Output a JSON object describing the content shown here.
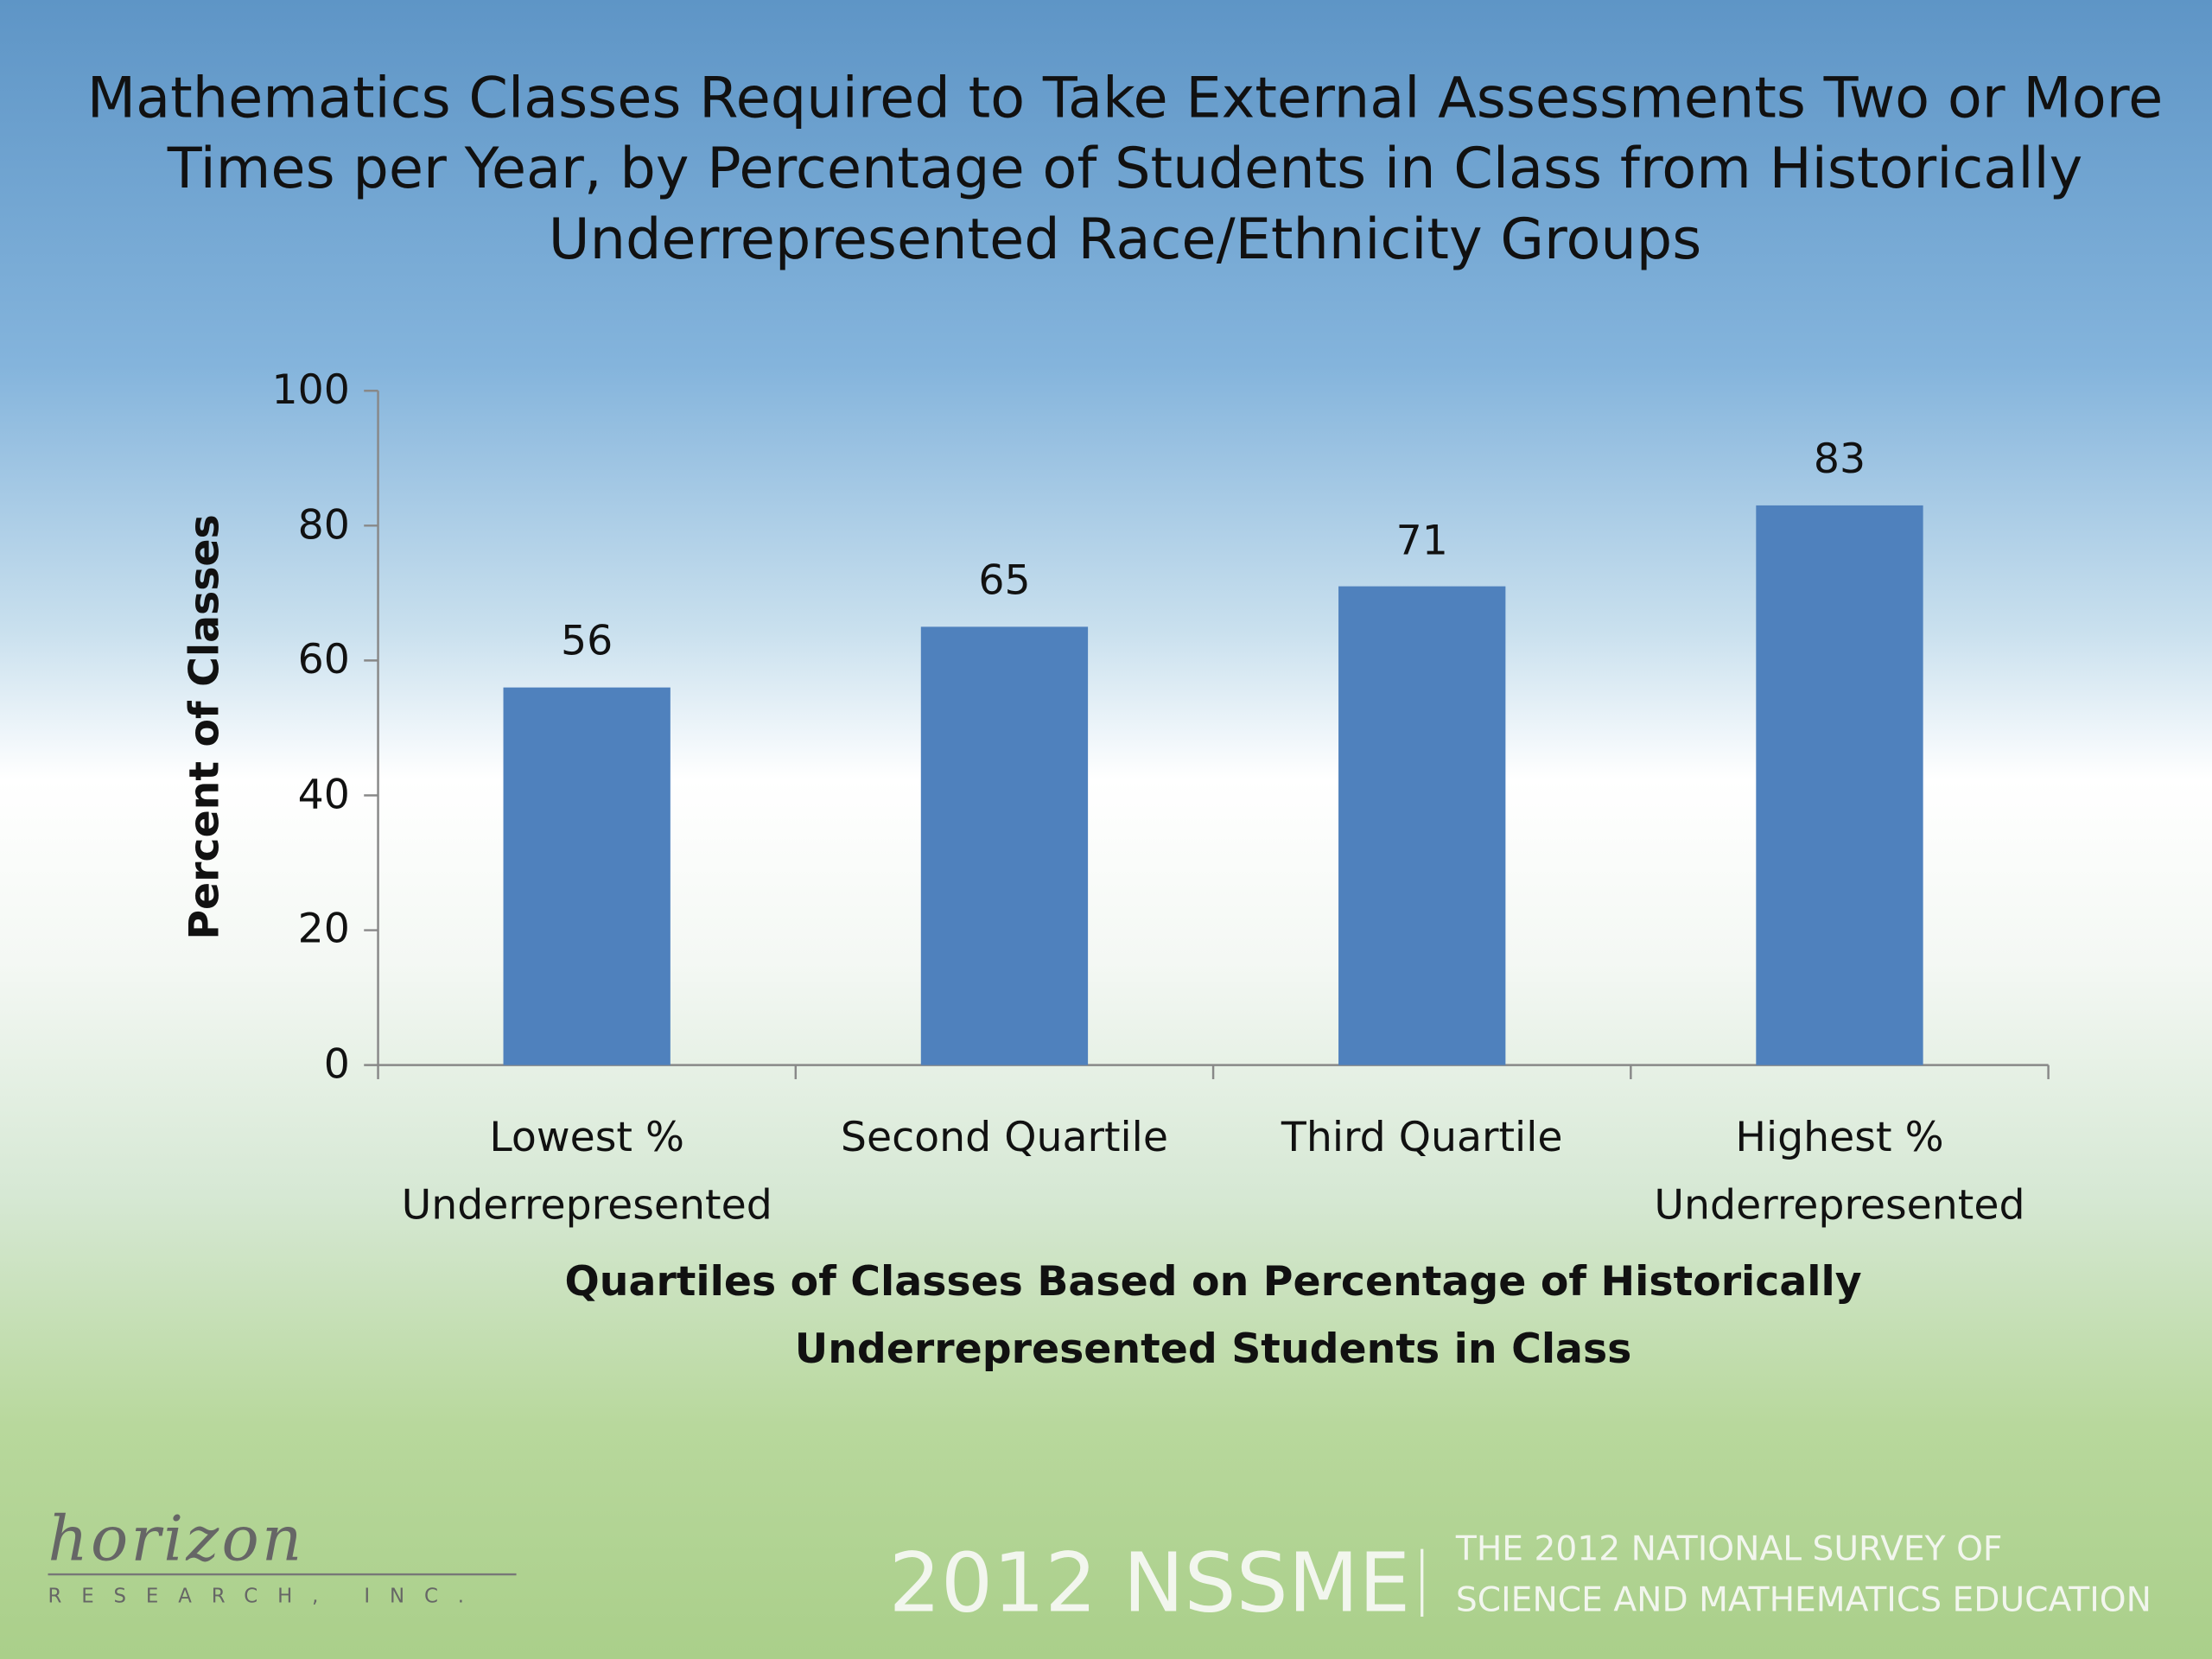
{
  "chart_data": {
    "type": "bar",
    "title": "Mathematics Classes Required to Take External Assessments Two or More Times per Year, by Percentage of Students in Class from Historically Underrepresented Race/Ethnicity Groups",
    "y_label": "Percent of Classes",
    "x_label": "Quartiles of Classes Based on Percentage of Historically Underrepresented Students in Class",
    "categories": [
      "Lowest % Underrepresented",
      "Second Quartile",
      "Third Quartile",
      "Highest % Underrepresented"
    ],
    "values": [
      56,
      65,
      71,
      83
    ],
    "color": "#4f81bd",
    "ylim": [
      0,
      100
    ],
    "yticks": [
      0,
      20,
      40,
      60,
      80,
      100
    ],
    "grid": false
  },
  "footer": {
    "logo": "horizon",
    "logo_subtitle": "RESEARCH, INC.",
    "brand": "2012 NSSME",
    "survey": [
      "THE 2012 NATIONAL SURVEY OF",
      "SCIENCE AND MATHEMATICS EDUCATION"
    ]
  }
}
